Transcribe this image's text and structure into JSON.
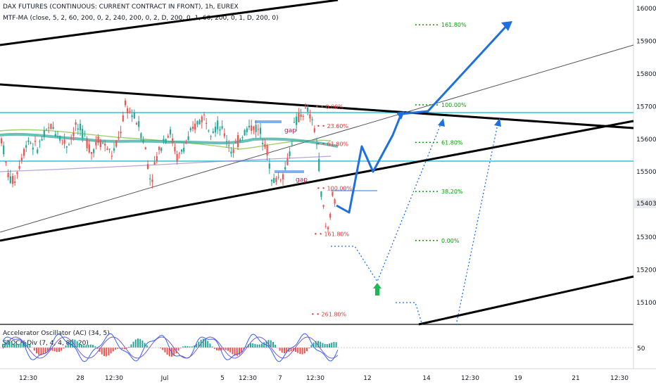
{
  "header": {
    "title": "DAX FUTURES (CONTINUOUS: CURRENT CONTRACT IN FRONT), 1h, EUREX",
    "study": "MTF-MA (close, 5, 2, 60, 200, 0, 2, 240, 200, 0, 2, D, 200, 0, 1, 60, 200, 0, 1, D, 200, 0)"
  },
  "lower_pane": {
    "indicator_1": "Accelerator Oscillator (AC) (34, 5)",
    "indicator_2": "STOCH Div (7, 4, 4, 80, 20)",
    "scale_label": "50"
  },
  "chart_data": {
    "type": "candlestick",
    "instrument": "DAX FUTURES (CONTINUOUS: CURRENT CONTRACT IN FRONT)",
    "timeframe": "1h",
    "exchange": "EUREX",
    "y_axis": {
      "ticks": [
        15100,
        15200,
        15300,
        15400,
        15500,
        15600,
        15700,
        15800,
        15900,
        16000
      ],
      "ylim": [
        15030,
        16020
      ],
      "last_price_label": "15403"
    },
    "x_axis": {
      "tick_labels": [
        "12:30",
        "28",
        "12:30",
        "Jul",
        "5",
        "12:30",
        "7",
        "12:30",
        "12",
        "14",
        "12:30",
        "19",
        "21",
        "12:30"
      ]
    },
    "price_series_approx": [
      [
        0,
        15620
      ],
      [
        6,
        15560
      ],
      [
        10,
        15500
      ],
      [
        16,
        15470
      ],
      [
        22,
        15480
      ],
      [
        30,
        15540
      ],
      [
        40,
        15600
      ],
      [
        52,
        15570
      ],
      [
        60,
        15600
      ],
      [
        72,
        15640
      ],
      [
        84,
        15610
      ],
      [
        96,
        15580
      ],
      [
        108,
        15640
      ],
      [
        120,
        15610
      ],
      [
        130,
        15560
      ],
      [
        140,
        15600
      ],
      [
        150,
        15580
      ],
      [
        160,
        15550
      ],
      [
        170,
        15610
      ],
      [
        178,
        15700
      ],
      [
        186,
        15680
      ],
      [
        196,
        15650
      ],
      [
        206,
        15580
      ],
      [
        214,
        15470
      ],
      [
        222,
        15540
      ],
      [
        232,
        15600
      ],
      [
        242,
        15620
      ],
      [
        252,
        15540
      ],
      [
        260,
        15570
      ],
      [
        270,
        15610
      ],
      [
        280,
        15650
      ],
      [
        290,
        15670
      ],
      [
        300,
        15630
      ],
      [
        310,
        15640
      ],
      [
        320,
        15610
      ],
      [
        330,
        15560
      ],
      [
        340,
        15600
      ],
      [
        350,
        15630
      ],
      [
        360,
        15640
      ],
      [
        370,
        15620
      ],
      [
        378,
        15590
      ],
      [
        386,
        15470
      ],
      [
        394,
        15480
      ],
      [
        402,
        15490
      ],
      [
        410,
        15540
      ],
      [
        418,
        15640
      ],
      [
        426,
        15670
      ],
      [
        436,
        15690
      ],
      [
        446,
        15640
      ],
      [
        452,
        15560
      ],
      [
        456,
        15440
      ],
      [
        460,
        15380
      ],
      [
        464,
        15310
      ],
      [
        468,
        15340
      ],
      [
        472,
        15440
      ],
      [
        476,
        15400
      ]
    ],
    "fibonacci_levels": [
      {
        "label": "161.80%",
        "price": 15950
      },
      {
        "label": "100.00%",
        "price": 15705
      },
      {
        "label": "61.80%",
        "price": 15590
      },
      {
        "label": "38.20%",
        "price": 15440
      },
      {
        "label": "0.00%",
        "price": 15290
      }
    ],
    "fibonacci_levels_left": [
      {
        "label": "0.00%",
        "price": 15700
      },
      {
        "label": "23.60%",
        "price": 15640
      },
      {
        "label": "61.80%",
        "price": 15585
      },
      {
        "label": "100.00%",
        "price": 15450
      },
      {
        "label": "161.80%",
        "price": 15310
      },
      {
        "label": "261.80%",
        "price": 15065
      }
    ],
    "horizontal_levels": [
      15680,
      15530
    ],
    "annotations": [
      {
        "text": "gap",
        "at": [
          410,
          15630
        ]
      },
      {
        "text": "gap",
        "at": [
          426,
          15480
        ]
      }
    ],
    "accent_colors": {
      "bull": "#26a69a",
      "bear": "#ef5350",
      "projection": "#1e6fe0",
      "fib": "#00a000",
      "level": "#00bcd4"
    }
  }
}
